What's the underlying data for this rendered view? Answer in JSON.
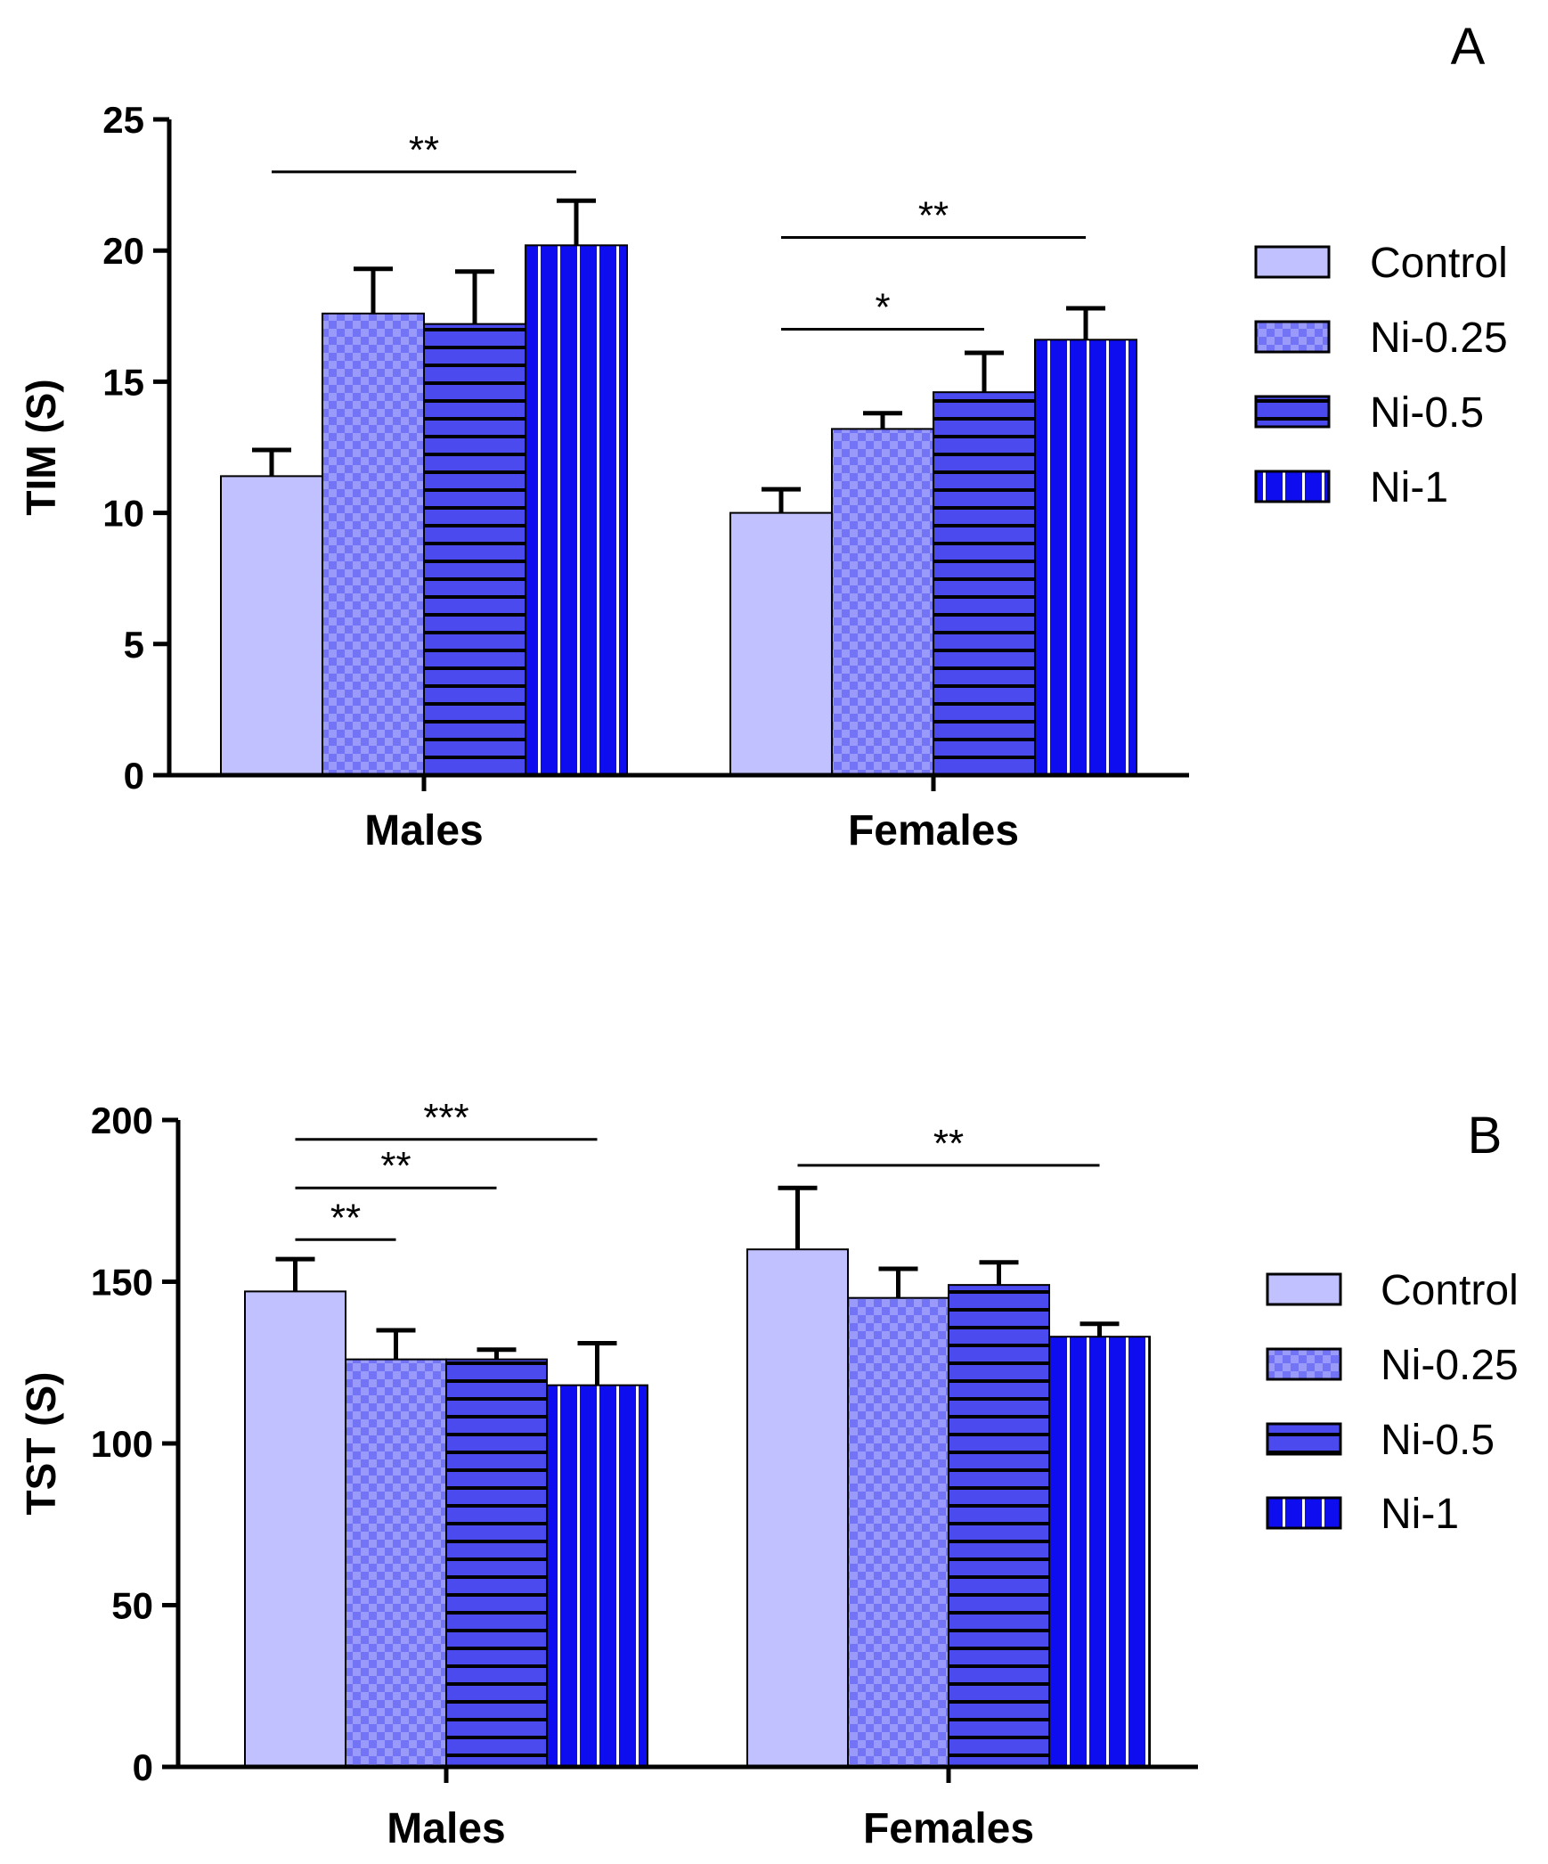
{
  "colors": {
    "Control": "#c1c1ff",
    "Ni-0.25": "#7373f5",
    "Ni-0.5": "#4a4aef",
    "Ni-1": "#0d0df0",
    "edge": "#000000",
    "pattern_light": "#9a9afa"
  },
  "chart_data": [
    {
      "type": "bar",
      "panel_label": "A",
      "title": "",
      "xlabel": "",
      "ylabel": "TIM (S)",
      "ylim": [
        0,
        25
      ],
      "yticks": [
        0,
        5,
        10,
        15,
        20,
        25
      ],
      "categories": [
        "Males",
        "Females"
      ],
      "series": [
        {
          "name": "Control",
          "pattern": "solid",
          "values": [
            11.4,
            10.0
          ],
          "errors": [
            1.0,
            0.9
          ]
        },
        {
          "name": "Ni-0.25",
          "pattern": "checker",
          "values": [
            17.6,
            13.2
          ],
          "errors": [
            1.7,
            0.6
          ]
        },
        {
          "name": "Ni-0.5",
          "pattern": "hlines",
          "values": [
            17.2,
            14.6
          ],
          "errors": [
            2.0,
            1.5
          ]
        },
        {
          "name": "Ni-1",
          "pattern": "vlines",
          "values": [
            20.2,
            16.6
          ],
          "errors": [
            1.7,
            1.2
          ]
        }
      ],
      "legend": {
        "position": "right",
        "entries": [
          "Control",
          "Ni-0.25",
          "Ni-0.5",
          "Ni-1"
        ]
      },
      "significance": [
        {
          "group": 0,
          "from": 0,
          "to": 3,
          "label": "**",
          "y": 23.0
        },
        {
          "group": 1,
          "from": 0,
          "to": 3,
          "label": "**",
          "y": 20.5
        },
        {
          "group": 1,
          "from": 0,
          "to": 2,
          "label": "*",
          "y": 17.0
        }
      ]
    },
    {
      "type": "bar",
      "panel_label": "B",
      "title": "",
      "xlabel": "",
      "ylabel": "TST (S)",
      "ylim": [
        0,
        200
      ],
      "yticks": [
        0,
        50,
        100,
        150,
        200
      ],
      "categories": [
        "Males",
        "Females"
      ],
      "series": [
        {
          "name": "Control",
          "pattern": "solid",
          "values": [
            147,
            160
          ],
          "errors": [
            10,
            19
          ]
        },
        {
          "name": "Ni-0.25",
          "pattern": "checker",
          "values": [
            126,
            145
          ],
          "errors": [
            9,
            9
          ]
        },
        {
          "name": "Ni-0.5",
          "pattern": "hlines",
          "values": [
            126,
            149
          ],
          "errors": [
            3,
            7
          ]
        },
        {
          "name": "Ni-1",
          "pattern": "vlines",
          "values": [
            118,
            133
          ],
          "errors": [
            13,
            4
          ]
        }
      ],
      "legend": {
        "position": "right",
        "entries": [
          "Control",
          "Ni-0.25",
          "Ni-0.5",
          "Ni-1"
        ]
      },
      "significance": [
        {
          "group": 0,
          "from": 0,
          "to": 3,
          "label": "***",
          "y": 194
        },
        {
          "group": 0,
          "from": 0,
          "to": 2,
          "label": "**",
          "y": 179
        },
        {
          "group": 0,
          "from": 0,
          "to": 1,
          "label": "**",
          "y": 163
        },
        {
          "group": 1,
          "from": 0,
          "to": 3,
          "label": "**",
          "y": 186
        }
      ]
    }
  ]
}
